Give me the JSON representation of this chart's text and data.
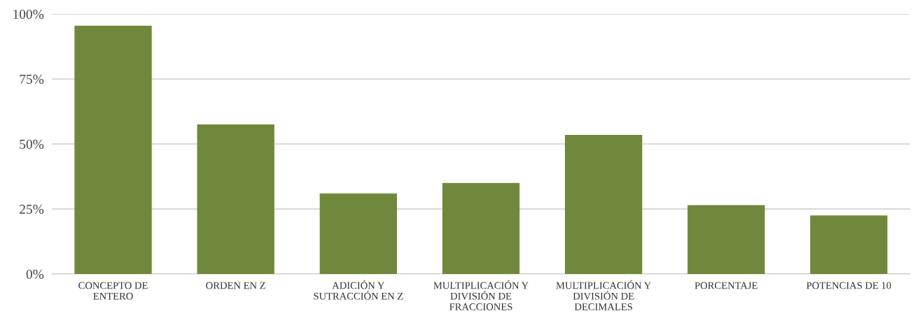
{
  "chart_data": {
    "type": "bar",
    "categories": [
      "CONCEPTO DE\nENTERO",
      "ORDEN EN Z",
      "ADICIÓN Y\nSUTRACCIÓN EN Z",
      "MULTIPLICACIÓN Y\nDIVISIÓN DE\nFRACCIONES",
      "MULTIPLICACIÓN Y\nDIVISIÓN DE\nDECIMALES",
      "PORCENTAJE",
      "POTENCIAS DE 10"
    ],
    "values": [
      95.5,
      57.5,
      31,
      35,
      53.5,
      26.5,
      22.5
    ],
    "color": "#70883c",
    "ylim": [
      0,
      100
    ],
    "yticks": [
      {
        "value": 0,
        "label": "0%"
      },
      {
        "value": 25,
        "label": "25%"
      },
      {
        "value": 50,
        "label": "50%"
      },
      {
        "value": 75,
        "label": "75%"
      },
      {
        "value": 100,
        "label": "100%"
      }
    ],
    "grid": "y"
  }
}
